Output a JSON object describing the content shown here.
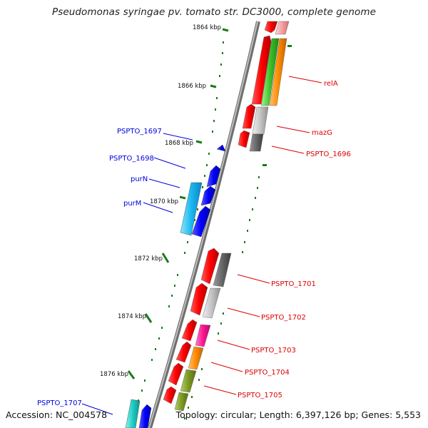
{
  "title": "Pseudomonas syringae pv. tomato str. DC3000, complete genome",
  "footer": {
    "accession": "Accession: NC_004578",
    "topology": "Topology: circular; Length: 6,397,126 bp; Genes: 5,553"
  },
  "kbp_ticks": [
    "1864 kbp",
    "1866 kbp",
    "1868 kbp",
    "1870 kbp",
    "1872 kbp",
    "1874 kbp",
    "1876 kbp"
  ],
  "gene_labels": {
    "reverse": [
      "PSPTO_1697",
      "PSPTO_1698",
      "purN",
      "purM",
      "PSPTO_1707"
    ],
    "forward": [
      "relA",
      "mazG",
      "PSPTO_1696",
      "PSPTO_1701",
      "PSPTO_1702",
      "PSPTO_1703",
      "PSPTO_1704",
      "PSPTO_1705"
    ]
  },
  "colors": {
    "forward_strand": "#ff0000",
    "reverse_strand": "#0000ff",
    "backbone": "#8c8c8c",
    "tick": "#1a7a1a"
  }
}
